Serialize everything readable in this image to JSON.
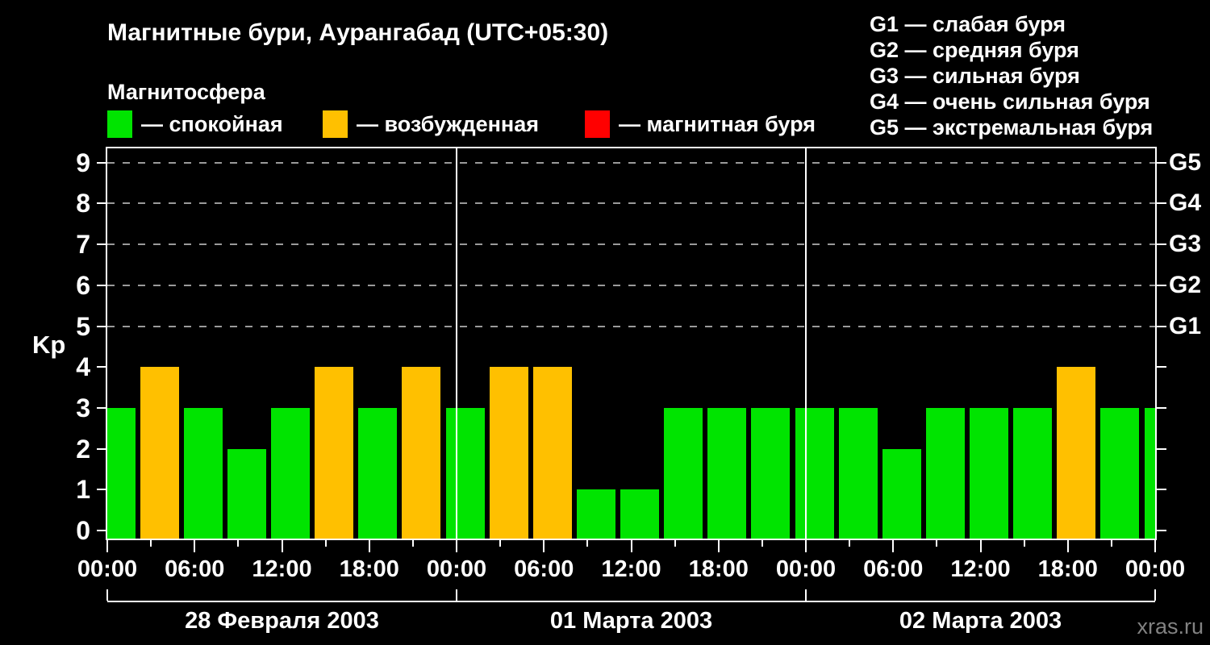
{
  "header": {
    "title": "Магнитные бури, Аурангабад (UTC+05:30)",
    "legend_title": "Магнитосфера"
  },
  "magnetosphere_legend": [
    {
      "state": "спокойная",
      "label": "— спокойная",
      "color": "#00e400"
    },
    {
      "state": "возбужденная",
      "label": "— возбужденная",
      "color": "#ffc000"
    },
    {
      "state": "магнитная буря",
      "label": "— магнитная буря",
      "color": "#ff0000"
    }
  ],
  "storm_scale_legend": [
    {
      "code": "G1",
      "text": "G1 — слабая буря"
    },
    {
      "code": "G2",
      "text": "G2 — средняя буря"
    },
    {
      "code": "G3",
      "text": "G3 — сильная буря"
    },
    {
      "code": "G4",
      "text": "G4 — очень сильная буря"
    },
    {
      "code": "G5",
      "text": "G5 — экстремальная буря"
    }
  ],
  "y_axis": {
    "label": "Kp",
    "tick_labels": [
      "0",
      "1",
      "2",
      "3",
      "4",
      "5",
      "6",
      "7",
      "8",
      "9"
    ]
  },
  "right_axis": {
    "labels": [
      {
        "text": "G1",
        "kp": 5
      },
      {
        "text": "G2",
        "kp": 6
      },
      {
        "text": "G3",
        "kp": 7
      },
      {
        "text": "G4",
        "kp": 8
      },
      {
        "text": "G5",
        "kp": 9
      }
    ]
  },
  "x_axis": {
    "labels": [
      "00:00",
      "06:00",
      "12:00",
      "18:00",
      "00:00",
      "06:00",
      "12:00",
      "18:00",
      "00:00",
      "06:00",
      "12:00",
      "18:00",
      "00:00"
    ],
    "minor_step_hours": 3,
    "major_step_hours": 6
  },
  "watermark": "xras.ru",
  "chart_data": {
    "type": "bar",
    "title": "Магнитные бури, Аурангабад (UTC+05:30)",
    "ylabel": "Kp",
    "ylim": [
      0,
      9
    ],
    "bar_interval_hours": 3,
    "days": [
      {
        "date": "28 Февраля 2003",
        "kp": [
          3,
          4,
          3,
          2,
          3,
          4,
          3,
          4
        ]
      },
      {
        "date": "01 Марта 2003",
        "kp": [
          3,
          4,
          4,
          1,
          1,
          3,
          3,
          3
        ]
      },
      {
        "date": "02 Марта 2003",
        "kp": [
          3,
          3,
          2,
          3,
          3,
          3,
          4,
          3
        ]
      }
    ],
    "next_interval_partial_kp": 3,
    "color_coding": {
      "kp_0_3": "#00e400",
      "kp_4": "#ffc000",
      "kp_5_9": "#ff0000"
    },
    "gridlines_at_kp": [
      5,
      6,
      7,
      8,
      9
    ],
    "grid_style": "dashed",
    "legend_position": "top"
  }
}
